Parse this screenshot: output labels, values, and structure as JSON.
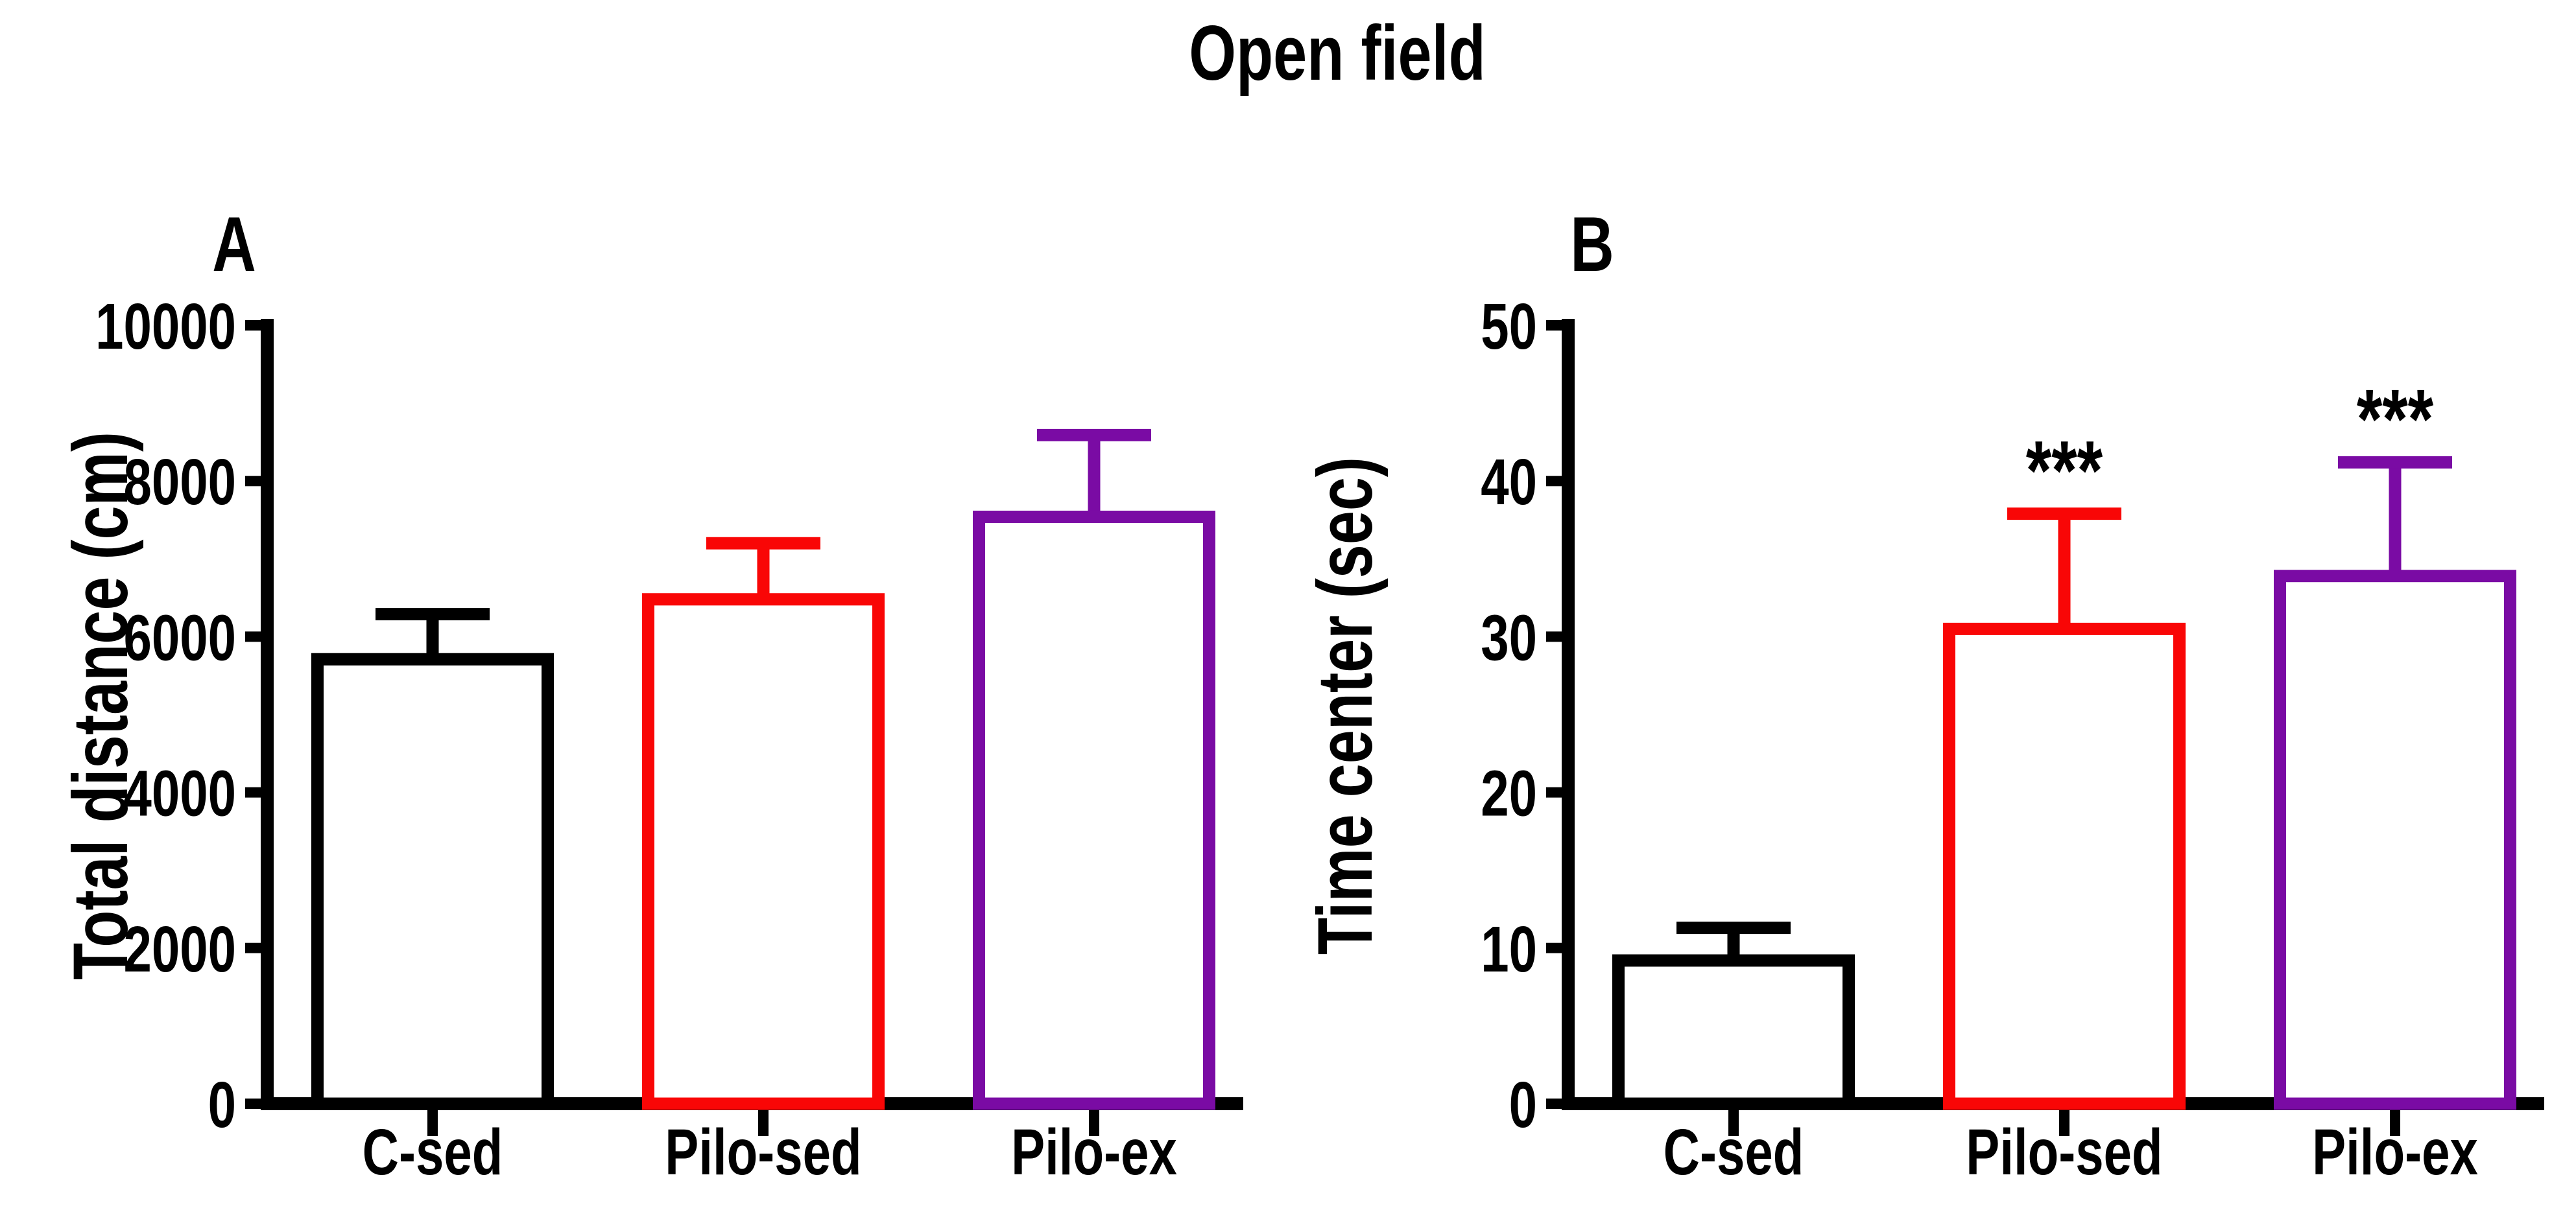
{
  "title": "Open field",
  "styles": {
    "background": "#FFFFFF",
    "axis_color": "#000000",
    "bar_fill": "#FFFFFF",
    "accent_black": "#000000",
    "accent_red": "#F90606",
    "accent_purple": "#7A0BA4"
  },
  "chart_data": [
    {
      "type": "bar",
      "panel_label": "A",
      "title": "",
      "xlabel": "",
      "ylabel": "Total distance (cm)",
      "ylim": [
        0,
        10000
      ],
      "yticks": [
        0,
        2000,
        4000,
        6000,
        8000,
        10000
      ],
      "ytick_labels": [
        "0",
        "2000",
        "4000",
        "6000",
        "8000",
        "10000"
      ],
      "grid": "off",
      "legend": "none",
      "categories": [
        "C-sed",
        "Pilo-sed",
        "Pilo-ex"
      ],
      "values": [
        5710,
        6480,
        7540
      ],
      "sem_upper": [
        580,
        720,
        1050
      ],
      "error_bar_tops": [
        6290,
        7200,
        8590
      ],
      "bar_colors": [
        "#000000",
        "#F90606",
        "#7A0BA4"
      ],
      "bar_fill": "#FFFFFF",
      "significance": [
        "",
        "",
        ""
      ]
    },
    {
      "type": "bar",
      "panel_label": "B",
      "title": "",
      "xlabel": "",
      "ylabel": "Time center (sec)",
      "ylim": [
        0,
        50
      ],
      "yticks": [
        0,
        10,
        20,
        30,
        40,
        50
      ],
      "ytick_labels": [
        "0",
        "10",
        "20",
        "30",
        "40",
        "50"
      ],
      "grid": "off",
      "legend": "none",
      "categories": [
        "C-sed",
        "Pilo-sed",
        "Pilo-ex"
      ],
      "values": [
        9.2,
        30.5,
        33.9
      ],
      "sem_upper": [
        2.1,
        7.4,
        7.3
      ],
      "error_bar_tops": [
        11.3,
        37.9,
        41.2
      ],
      "bar_colors": [
        "#000000",
        "#F90606",
        "#7A0BA4"
      ],
      "bar_fill": "#FFFFFF",
      "significance": [
        "",
        "***",
        "***"
      ]
    }
  ]
}
